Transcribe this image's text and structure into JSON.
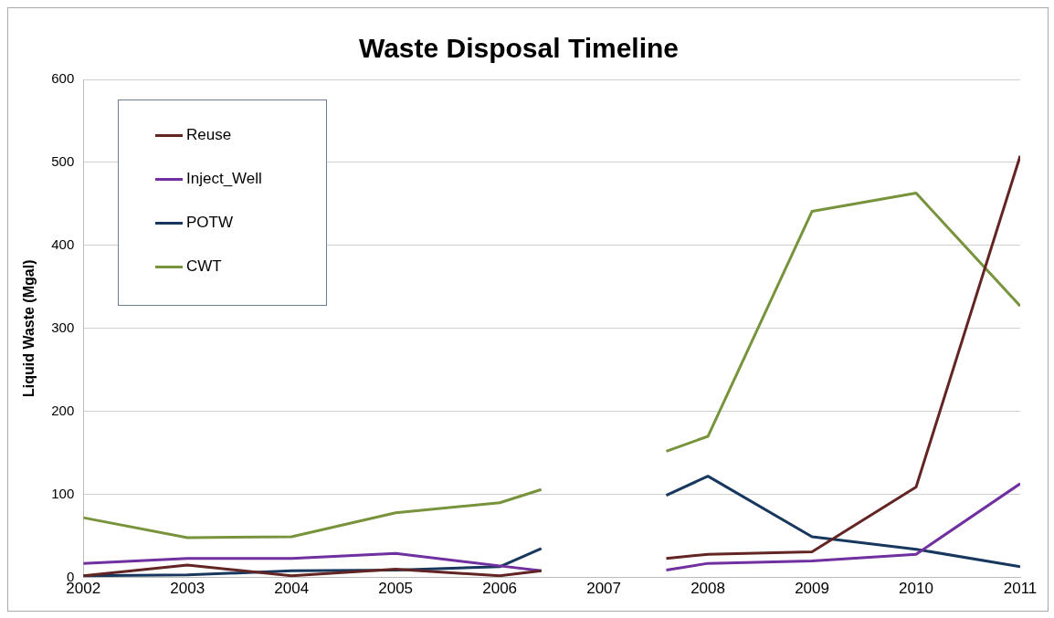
{
  "chart_data": {
    "type": "line",
    "title": "Waste Disposal Timeline",
    "ylabel": "Liquid Waste (Mgal)",
    "x": [
      2002,
      2003,
      2004,
      2005,
      2006,
      2006.4,
      2007,
      2007.6,
      2008,
      2009,
      2010,
      2011
    ],
    "series": [
      {
        "name": "Reuse",
        "color": "#632523",
        "values": [
          2,
          15,
          2,
          10,
          2,
          8,
          null,
          23,
          28,
          31,
          109,
          508
        ]
      },
      {
        "name": "Inject_Well",
        "color": "#7030a0",
        "values": [
          17,
          23,
          23,
          29,
          14,
          8,
          null,
          9,
          17,
          20,
          28,
          113
        ]
      },
      {
        "name": "POTW",
        "color": "#17375e",
        "values": [
          2,
          3,
          8,
          9,
          13,
          35,
          null,
          99,
          122,
          49,
          34,
          13
        ]
      },
      {
        "name": "CWT",
        "color": "#77933c",
        "values": [
          72,
          48,
          49,
          78,
          90,
          106,
          null,
          152,
          170,
          441,
          463,
          327
        ]
      }
    ],
    "xlim": [
      2002,
      2011
    ],
    "xticks": [
      2002,
      2003,
      2004,
      2005,
      2006,
      2007,
      2008,
      2009,
      2010,
      2011
    ],
    "ylim": [
      0,
      600
    ],
    "yticks": [
      0,
      100,
      200,
      300,
      400,
      500,
      600
    ],
    "grid": "y",
    "legend": "top left",
    "marker": "none",
    "line_style": "solid"
  }
}
